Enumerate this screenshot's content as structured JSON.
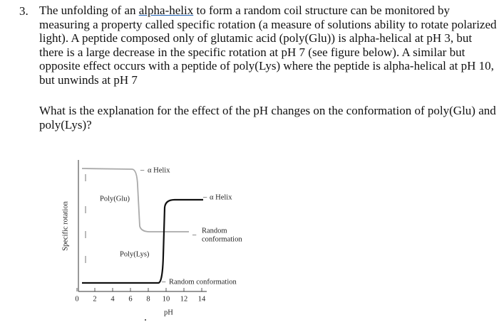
{
  "question": {
    "number": "3.",
    "text_before": "The unfolding of an ",
    "link": "alpha-helix",
    "text_after": " to form a random coil structure can be monitored by measuring a property called specific rotation (a measure of solutions ability to rotate polarized light). A peptide composed only of glutamic acid (poly(Glu)) is alpha-helical at pH 3, but there is a large decrease in the specific rotation at pH 7 (see figure below). A similar but opposite effect occurs with a peptide of poly(Lys) where the peptide is alpha-helical at pH 10, but unwinds at pH 7"
  },
  "prompt": "What is the explanation for the effect of the pH changes on the conformation of poly(Glu) and poly(Lys)?",
  "figure": {
    "y_label": "Specific rotation",
    "x_label": "pH",
    "x_ticks": [
      0,
      2,
      4,
      6,
      8,
      10,
      12,
      14
    ],
    "curve_labels": [
      "Poly(Glu)",
      "Poly(Lys)"
    ],
    "annotations": [
      "α Helix",
      "α Helix",
      "Random",
      "conformation",
      "Random conformation"
    ]
  }
}
